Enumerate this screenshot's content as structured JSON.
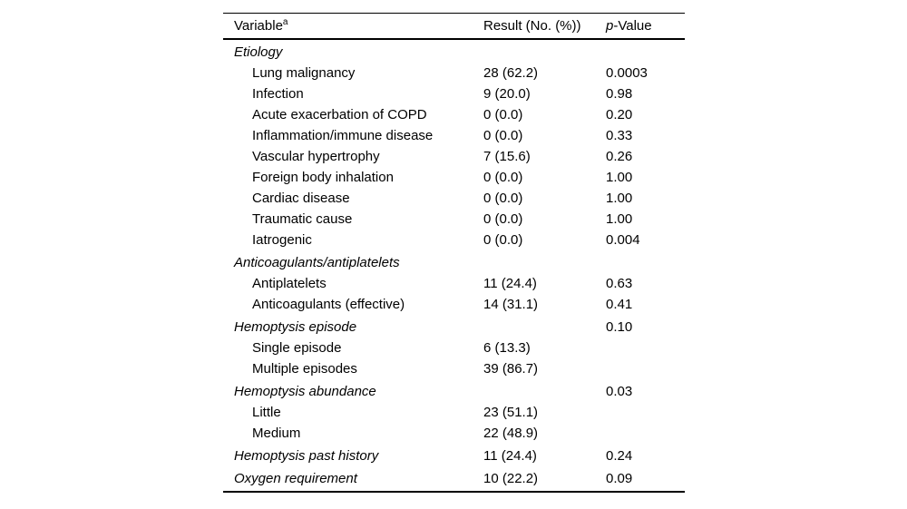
{
  "page": {
    "background_color": "#ffffff",
    "text_color": "#000000",
    "rule_color": "#000000"
  },
  "table": {
    "headers": {
      "variable": "Variable",
      "variable_superscript": "a",
      "result": "Result (No. (%))",
      "pvalue_italic": "p",
      "pvalue_rest": "-Value"
    },
    "rows": [
      {
        "type": "category",
        "label": "Etiology",
        "result": "",
        "pvalue": ""
      },
      {
        "type": "item",
        "label": "Lung malignancy",
        "result": "28 (62.2)",
        "pvalue": "0.0003"
      },
      {
        "type": "item",
        "label": "Infection",
        "result": "9 (20.0)",
        "pvalue": "0.98"
      },
      {
        "type": "item",
        "label": "Acute exacerbation of COPD",
        "result": "0 (0.0)",
        "pvalue": "0.20"
      },
      {
        "type": "item",
        "label": "Inflammation/immune disease",
        "result": "0 (0.0)",
        "pvalue": "0.33"
      },
      {
        "type": "item",
        "label": "Vascular hypertrophy",
        "result": "7 (15.6)",
        "pvalue": "0.26"
      },
      {
        "type": "item",
        "label": "Foreign body inhalation",
        "result": "0 (0.0)",
        "pvalue": "1.00"
      },
      {
        "type": "item",
        "label": "Cardiac disease",
        "result": "0 (0.0)",
        "pvalue": "1.00"
      },
      {
        "type": "item",
        "label": "Traumatic cause",
        "result": "0 (0.0)",
        "pvalue": "1.00"
      },
      {
        "type": "item",
        "label": "Iatrogenic",
        "result": "0 (0.0)",
        "pvalue": "0.004"
      },
      {
        "type": "category",
        "label": "Anticoagulants/antiplatelets",
        "result": "",
        "pvalue": ""
      },
      {
        "type": "item",
        "label": "Antiplatelets",
        "result": "11 (24.4)",
        "pvalue": "0.63"
      },
      {
        "type": "item",
        "label": "Anticoagulants (effective)",
        "result": "14 (31.1)",
        "pvalue": "0.41"
      },
      {
        "type": "category",
        "label": "Hemoptysis episode",
        "result": "",
        "pvalue": "0.10"
      },
      {
        "type": "item",
        "label": "Single episode",
        "result": "6 (13.3)",
        "pvalue": ""
      },
      {
        "type": "item",
        "label": "Multiple episodes",
        "result": "39 (86.7)",
        "pvalue": ""
      },
      {
        "type": "category",
        "label": "Hemoptysis abundance",
        "result": "",
        "pvalue": "0.03"
      },
      {
        "type": "item",
        "label": "Little",
        "result": "23 (51.1)",
        "pvalue": ""
      },
      {
        "type": "item",
        "label": "Medium",
        "result": "22 (48.9)",
        "pvalue": ""
      },
      {
        "type": "category",
        "label": "Hemoptysis past history",
        "result": "11 (24.4)",
        "pvalue": "0.24"
      },
      {
        "type": "category",
        "label": "Oxygen requirement",
        "result": "10 (22.2)",
        "pvalue": "0.09"
      }
    ]
  }
}
